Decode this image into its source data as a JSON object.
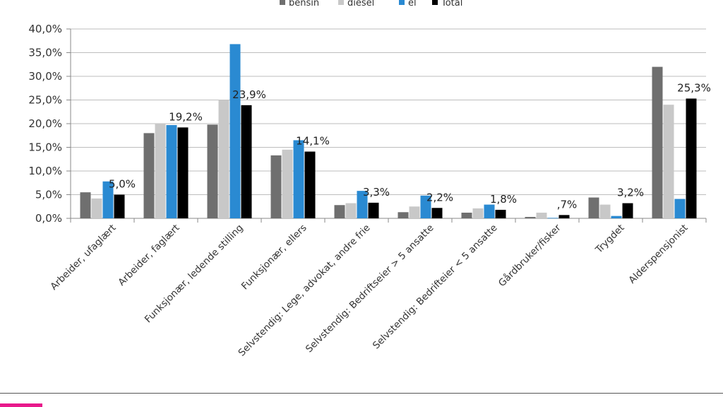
{
  "chart_data": {
    "type": "bar",
    "legend": {
      "placement": "top",
      "entries": [
        "bensin",
        "diesel",
        "el",
        "Total"
      ]
    },
    "categories": [
      "Arbeider, ufaglært",
      "Arbeider, faglært",
      "Funksjonær, ledende stilling",
      "Funksjonær, ellers",
      "Selvstendig: Lege, advokat, andre frie",
      "Selvstendig: Bedriftseier > 5 ansatte",
      "Selvstendig: Bedrifteier < 5 ansatte",
      "Gårdbruker/fisker",
      "Trygdet",
      "Alderspensjonist"
    ],
    "series": [
      {
        "name": "bensin",
        "color": "#6f6f6f",
        "values": [
          5.5,
          18.0,
          19.8,
          13.3,
          2.8,
          1.3,
          1.2,
          0.3,
          4.4,
          32.0
        ]
      },
      {
        "name": "diesel",
        "color": "#c8c8c8",
        "values": [
          4.2,
          20.0,
          25.0,
          14.5,
          3.2,
          2.5,
          2.1,
          1.2,
          2.9,
          24.0
        ]
      },
      {
        "name": "el",
        "color": "#2a8ad2",
        "values": [
          7.8,
          19.7,
          36.8,
          16.5,
          5.8,
          4.8,
          2.9,
          0.1,
          0.5,
          4.1
        ]
      },
      {
        "name": "Total",
        "color": "#000000",
        "values": [
          5.0,
          19.2,
          23.9,
          14.1,
          3.3,
          2.2,
          1.8,
          0.7,
          3.2,
          25.3
        ]
      }
    ],
    "data_labels": [
      "5,0%",
      "19,2%",
      "23,9%",
      "14,1%",
      "3,3%",
      "2,2%",
      "1,8%",
      ",7%",
      "3,2%",
      "25,3%"
    ],
    "y_ticks": [
      "0,0%",
      "5,0%",
      "10,0%",
      "15,0%",
      "20,0%",
      "25,0%",
      "30,0%",
      "35,0%",
      "40,0%"
    ],
    "ylim": [
      0,
      40
    ],
    "grid": true,
    "title": "",
    "xlabel": "",
    "ylabel": ""
  }
}
